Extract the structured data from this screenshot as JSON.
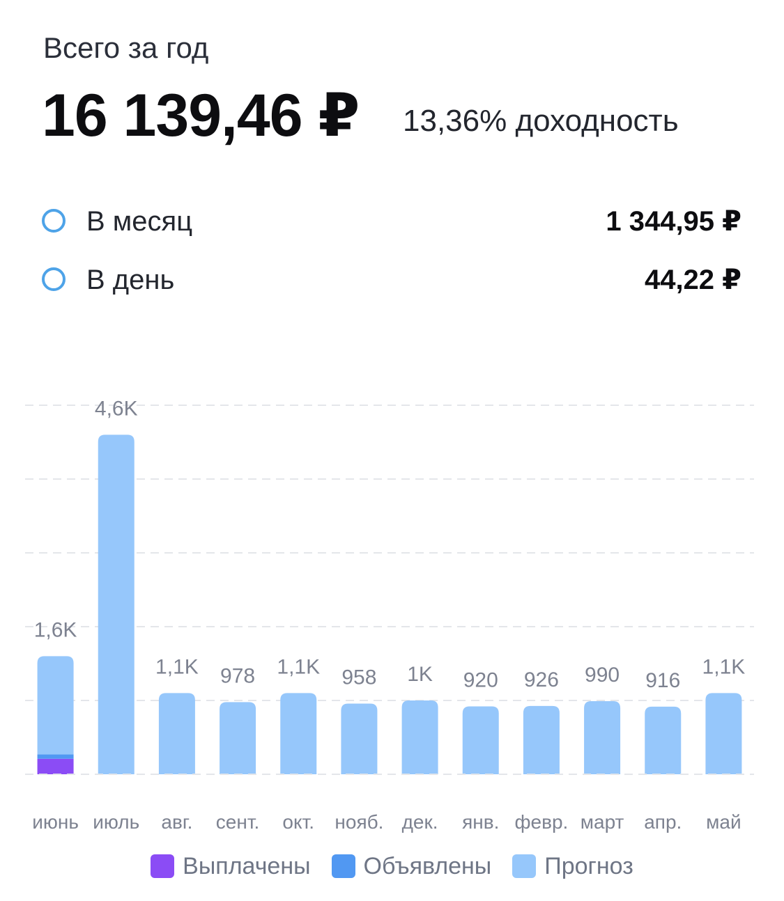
{
  "header": {
    "title": "Всего за год",
    "total": "16 139,46 ₽",
    "yield_text": "13,36% доходность"
  },
  "stats": [
    {
      "label": "В месяц",
      "value": "1 344,95 ₽"
    },
    {
      "label": "В день",
      "value": "44,22 ₽"
    }
  ],
  "colors": {
    "paid": "#8b4cf5",
    "announced": "#5198f2",
    "forecast": "#96c7fb",
    "stat_ring": "#4ea3e8"
  },
  "chart_data": {
    "type": "bar",
    "stacked": true,
    "categories": [
      "июнь",
      "июль",
      "авг.",
      "сент.",
      "окт.",
      "нояб.",
      "дек.",
      "янв.",
      "февр.",
      "март",
      "апр.",
      "май"
    ],
    "data_labels": [
      "1,6K",
      "4,6K",
      "1,1K",
      "978",
      "1,1K",
      "958",
      "1K",
      "920",
      "926",
      "990",
      "916",
      "1,1K"
    ],
    "series": [
      {
        "name": "Выплачены",
        "values": [
          210,
          0,
          0,
          0,
          0,
          0,
          0,
          0,
          0,
          0,
          0,
          0
        ]
      },
      {
        "name": "Объявлены",
        "values": [
          60,
          0,
          0,
          0,
          0,
          0,
          0,
          0,
          0,
          0,
          0,
          0
        ]
      },
      {
        "name": "Прогноз",
        "values": [
          1330,
          4600,
          1100,
          978,
          1100,
          958,
          1000,
          920,
          926,
          990,
          916,
          1100
        ]
      }
    ],
    "ylim": [
      0,
      5000
    ],
    "grid": true,
    "legend_position": "bottom"
  }
}
